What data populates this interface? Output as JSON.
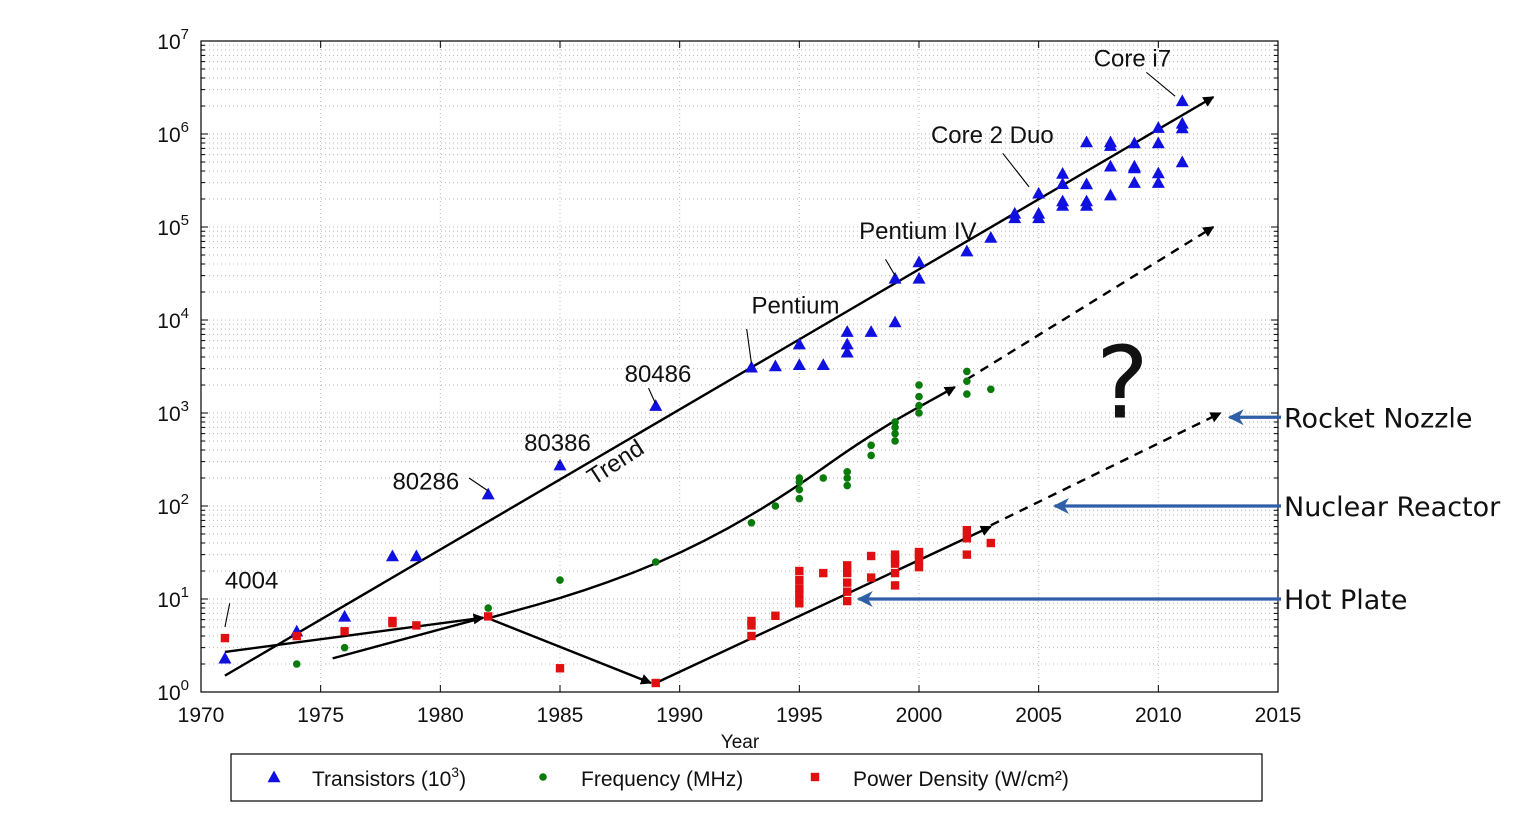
{
  "chart_data": {
    "type": "scatter",
    "xlabel": "Year",
    "xlim": [
      1970,
      2015
    ],
    "ylim": [
      1,
      10000000
    ],
    "yscale": "log",
    "grid": true,
    "x_ticks": [
      "1970",
      "1975",
      "1980",
      "1985",
      "1990",
      "1995",
      "2000",
      "2005",
      "2010",
      "2015"
    ],
    "y_ticks": [
      {
        "base": "10",
        "exp": "0"
      },
      {
        "base": "10",
        "exp": "1"
      },
      {
        "base": "10",
        "exp": "2"
      },
      {
        "base": "10",
        "exp": "3"
      },
      {
        "base": "10",
        "exp": "4"
      },
      {
        "base": "10",
        "exp": "5"
      },
      {
        "base": "10",
        "exp": "6"
      },
      {
        "base": "10",
        "exp": "7"
      }
    ],
    "legend_position": "bottom",
    "series": [
      {
        "name": "Transistors (10³)",
        "legend_main": "Transistors (10",
        "legend_sup": "3",
        "legend_tail": ")",
        "color": "#1010e0",
        "marker": "triangle",
        "points": [
          [
            1971,
            2.3
          ],
          [
            1974,
            4.5
          ],
          [
            1976,
            6.5
          ],
          [
            1978,
            29
          ],
          [
            1979,
            29
          ],
          [
            1982,
            134
          ],
          [
            1985,
            275
          ],
          [
            1989,
            1200
          ],
          [
            1993,
            3100
          ],
          [
            1994,
            3200
          ],
          [
            1995,
            5500
          ],
          [
            1995,
            3300
          ],
          [
            1996,
            3300
          ],
          [
            1997,
            7500
          ],
          [
            1997,
            5500
          ],
          [
            1997,
            4500
          ],
          [
            1998,
            7500
          ],
          [
            1999,
            9500
          ],
          [
            1999,
            28000
          ],
          [
            2000,
            42000
          ],
          [
            2000,
            28000
          ],
          [
            2002,
            55000
          ],
          [
            2003,
            77000
          ],
          [
            2004,
            125000
          ],
          [
            2004,
            140000
          ],
          [
            2005,
            230000
          ],
          [
            2005,
            125000
          ],
          [
            2005,
            140000
          ],
          [
            2006,
            291000
          ],
          [
            2006,
            376000
          ],
          [
            2006,
            170000
          ],
          [
            2006,
            190000
          ],
          [
            2007,
            820000
          ],
          [
            2007,
            290000
          ],
          [
            2007,
            170000
          ],
          [
            2007,
            190000
          ],
          [
            2008,
            820000
          ],
          [
            2008,
            750000
          ],
          [
            2008,
            450000
          ],
          [
            2008,
            220000
          ],
          [
            2009,
            800000
          ],
          [
            2009,
            430000
          ],
          [
            2009,
            450000
          ],
          [
            2009,
            300000
          ],
          [
            2010,
            1170000
          ],
          [
            2010,
            800000
          ],
          [
            2010,
            380000
          ],
          [
            2010,
            300000
          ],
          [
            2011,
            2270000
          ],
          [
            2011,
            1300000
          ],
          [
            2011,
            1160000
          ],
          [
            2011,
            500000
          ]
        ]
      },
      {
        "name": "Frequency (MHz)",
        "legend_main": "Frequency (MHz)",
        "color": "#0a7a0a",
        "marker": "circle",
        "points": [
          [
            1974,
            2
          ],
          [
            1976,
            3
          ],
          [
            1982,
            8
          ],
          [
            1985,
            16
          ],
          [
            1989,
            25
          ],
          [
            1993,
            66
          ],
          [
            1994,
            100
          ],
          [
            1995,
            120
          ],
          [
            1995,
            150
          ],
          [
            1995,
            180
          ],
          [
            1995,
            200
          ],
          [
            1996,
            200
          ],
          [
            1997,
            166
          ],
          [
            1997,
            200
          ],
          [
            1997,
            233
          ],
          [
            1998,
            350
          ],
          [
            1998,
            450
          ],
          [
            1999,
            500
          ],
          [
            1999,
            600
          ],
          [
            1999,
            700
          ],
          [
            1999,
            800
          ],
          [
            2000,
            1000
          ],
          [
            2000,
            1200
          ],
          [
            2000,
            1500
          ],
          [
            2000,
            2000
          ],
          [
            2002,
            1600
          ],
          [
            2002,
            2200
          ],
          [
            2002,
            2800
          ],
          [
            2003,
            1800
          ]
        ]
      },
      {
        "name": "Power Density (W/cm²)",
        "legend_main": "Power Density (W/cm²)",
        "color": "#e01010",
        "marker": "square",
        "points": [
          [
            1971,
            3.8
          ],
          [
            1974,
            4
          ],
          [
            1976,
            4.5
          ],
          [
            1978,
            5.5
          ],
          [
            1978,
            5.8
          ],
          [
            1979,
            5.2
          ],
          [
            1982,
            6.5
          ],
          [
            1985,
            1.8
          ],
          [
            1989,
            1.25
          ],
          [
            1993,
            4
          ],
          [
            1993,
            5.2
          ],
          [
            1993,
            5.8
          ],
          [
            1994,
            6.6
          ],
          [
            1995,
            9
          ],
          [
            1995,
            11
          ],
          [
            1995,
            13
          ],
          [
            1995,
            16
          ],
          [
            1995,
            20
          ],
          [
            1996,
            19
          ],
          [
            1997,
            9.5
          ],
          [
            1997,
            12
          ],
          [
            1997,
            15
          ],
          [
            1997,
            19
          ],
          [
            1997,
            23
          ],
          [
            1998,
            17
          ],
          [
            1998,
            29
          ],
          [
            1999,
            14
          ],
          [
            1999,
            19
          ],
          [
            1999,
            24
          ],
          [
            1999,
            27
          ],
          [
            1999,
            30
          ],
          [
            2000,
            22
          ],
          [
            2000,
            26
          ],
          [
            2000,
            30
          ],
          [
            2000,
            32
          ],
          [
            2002,
            30
          ],
          [
            2002,
            45
          ],
          [
            2002,
            55
          ],
          [
            2003,
            40
          ]
        ]
      }
    ],
    "trend_lines": [
      {
        "from": [
          1971,
          1.5
        ],
        "to": [
          2012.3,
          2500000
        ],
        "style": "solid",
        "arrow": true
      },
      {
        "from": [
          2002,
          2300
        ],
        "to": [
          2012.3,
          100000
        ],
        "style": "dashed",
        "arrow": true
      },
      {
        "from": [
          1971,
          2.7
        ],
        "to": [
          1981.8,
          6.3
        ],
        "style": "solid",
        "arrow": true
      },
      {
        "from": [
          1975.5,
          2.3
        ],
        "to": [
          1981.8,
          6.3
        ],
        "style": "solid",
        "arrow": false
      },
      {
        "from": [
          1982,
          6.2
        ],
        "to": [
          1988.8,
          1.25
        ],
        "style": "solid",
        "arrow": true
      },
      {
        "path": [
          [
            1982,
            6.2
          ],
          [
            1986,
            12
          ],
          [
            1990,
            30
          ],
          [
            1994,
            110
          ],
          [
            1998,
            600
          ],
          [
            2001.5,
            1900
          ]
        ],
        "style": "solid",
        "arrow": true
      },
      {
        "from": [
          1989,
          1.25
        ],
        "to": [
          2003,
          60
        ],
        "style": "solid",
        "arrow": true
      },
      {
        "from": [
          2003,
          62
        ],
        "to": [
          2012.6,
          1000
        ],
        "style": "dashed",
        "arrow": true
      }
    ],
    "chip_annotations": [
      {
        "label": "4004",
        "text_at": [
          1971,
          13
        ],
        "point": [
          1971,
          3.8
        ],
        "line_from": [
          1971.2,
          9
        ],
        "line_to": [
          1971,
          5
        ]
      },
      {
        "label": "80286",
        "text_at": [
          1978,
          150
        ],
        "point": [
          1982,
          134
        ],
        "line_from": [
          1981.2,
          200
        ],
        "line_to": [
          1982,
          145
        ]
      },
      {
        "label": "80386",
        "text_at": [
          1983.5,
          390
        ],
        "point": [
          1985,
          275
        ],
        "line_from": [
          1984.9,
          300
        ],
        "line_to": [
          1985,
          290
        ]
      },
      {
        "label": "80486",
        "text_at": [
          1987.7,
          2150
        ],
        "point": [
          1989,
          1200
        ],
        "line_from": [
          1988.7,
          1850
        ],
        "line_to": [
          1989,
          1250
        ]
      },
      {
        "label": "Pentium",
        "text_at": [
          1993,
          11700
        ],
        "point": [
          1993,
          3100
        ],
        "line_from": [
          1992.8,
          8000
        ],
        "line_to": [
          1993,
          3400
        ]
      },
      {
        "label": "Pentium IV",
        "text_at": [
          1997.5,
          74000
        ],
        "point": [
          1999,
          28000
        ],
        "line_from": [
          1998.6,
          45000
        ],
        "line_to": [
          1999,
          30000
        ]
      },
      {
        "label": "Core 2 Duo",
        "text_at": [
          2000.5,
          800000
        ],
        "point": [
          2005,
          230000
        ],
        "line_from": [
          2003.5,
          620000
        ],
        "line_to": [
          2004.6,
          270000
        ]
      },
      {
        "label": "Core i7",
        "text_at": [
          2007.3,
          5300000
        ],
        "point": [
          2011,
          2270000
        ],
        "line_from": [
          2009.5,
          4600000
        ],
        "line_to": [
          2010.7,
          2550000
        ]
      }
    ],
    "annotations": {
      "trend": "Trend",
      "question": "?"
    },
    "side_labels": [
      {
        "label": "Rocket Nozzle",
        "target": [
          2012.8,
          900
        ]
      },
      {
        "label": "Nuclear Reactor",
        "target": [
          2005.5,
          100
        ]
      },
      {
        "label": "Hot Plate",
        "target": [
          1997.3,
          10
        ]
      }
    ]
  }
}
